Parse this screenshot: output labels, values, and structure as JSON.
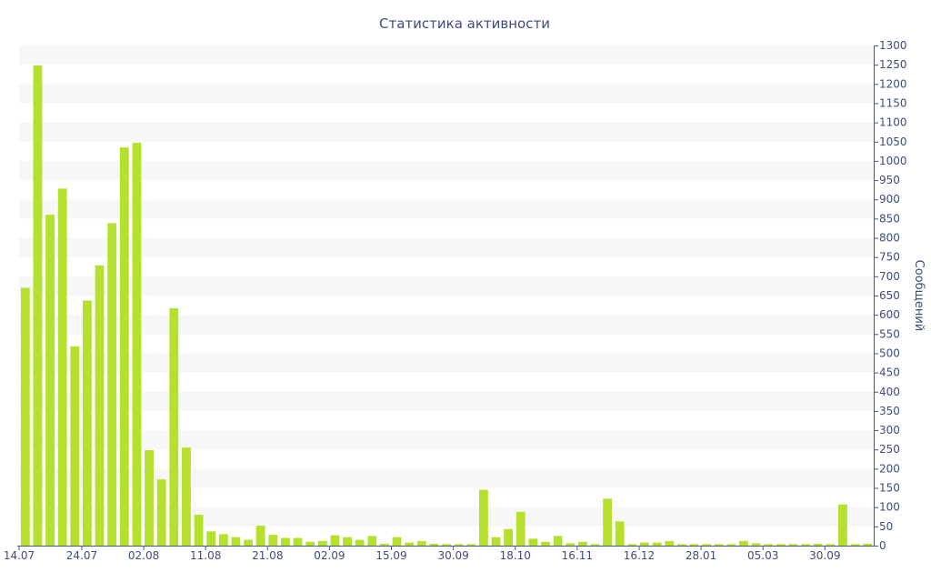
{
  "chart_data": {
    "type": "bar",
    "title": "Статистика активности",
    "ylabel": "Сообщений",
    "xlabel": "",
    "ylim": [
      0,
      1300
    ],
    "y_ticks": [
      0,
      50,
      100,
      150,
      200,
      250,
      300,
      350,
      400,
      450,
      500,
      550,
      600,
      650,
      700,
      750,
      800,
      850,
      900,
      950,
      1000,
      1050,
      1100,
      1150,
      1200,
      1250,
      1300
    ],
    "y_axis_side": "right",
    "grid": "alternating horizontal bands",
    "legend": "none",
    "bar_color": "#b5e02e",
    "text_color": "#3d4d7c",
    "x_tick_labels": [
      {
        "label": "14.07",
        "index": 0
      },
      {
        "label": "24.07",
        "index": 5
      },
      {
        "label": "02.08",
        "index": 10
      },
      {
        "label": "11.08",
        "index": 15
      },
      {
        "label": "21.08",
        "index": 20
      },
      {
        "label": "02.09",
        "index": 25
      },
      {
        "label": "15.09",
        "index": 30
      },
      {
        "label": "30.09",
        "index": 35
      },
      {
        "label": "18.10",
        "index": 40
      },
      {
        "label": "16.11",
        "index": 45
      },
      {
        "label": "16.12",
        "index": 50
      },
      {
        "label": "28.01",
        "index": 55
      },
      {
        "label": "05.03",
        "index": 60
      },
      {
        "label": "30.09",
        "index": 65
      }
    ],
    "values": [
      670,
      1248,
      860,
      928,
      518,
      637,
      728,
      838,
      1035,
      1047,
      248,
      172,
      617,
      255,
      80,
      37,
      30,
      22,
      15,
      52,
      28,
      20,
      20,
      10,
      12,
      27,
      22,
      15,
      25,
      5,
      22,
      8,
      12,
      5,
      4,
      4,
      4,
      145,
      22,
      43,
      88,
      18,
      10,
      25,
      6,
      10,
      4,
      122,
      63,
      4,
      8,
      8,
      12,
      4,
      4,
      4,
      4,
      4,
      12,
      6,
      4,
      4,
      4,
      4,
      5,
      4,
      107,
      4,
      5
    ]
  }
}
